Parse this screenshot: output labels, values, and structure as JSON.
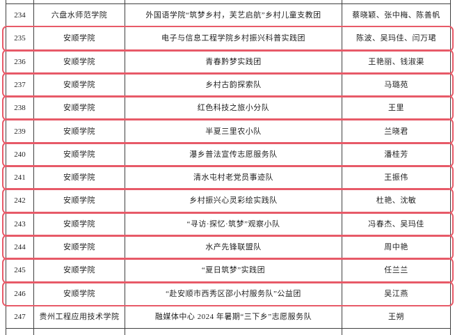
{
  "accent": {
    "highlight_border": "#e75a68",
    "grid_border": "#3f3f3f",
    "text_color": "#1f1f1f",
    "background": "#ffffff"
  },
  "table": {
    "rows": [
      {
        "no": "234",
        "school": "六盘水师范学院",
        "team": "外国语学院“筑梦乡村，芙艺启航”乡村儿童支教团",
        "members": "蔡晓颖、张中梅、陈善帆",
        "highlighted": false
      },
      {
        "no": "235",
        "school": "安顺学院",
        "team": "电子与信息工程学院乡村振兴科普实践团",
        "members": "陈波、吴玛佳、闫万珺",
        "highlighted": true
      },
      {
        "no": "236",
        "school": "安顺学院",
        "team": "青春黔梦实践团",
        "members": "王艳丽、钱淑渠",
        "highlighted": true
      },
      {
        "no": "237",
        "school": "安顺学院",
        "team": "乡村古韵探索队",
        "members": "马璐苑",
        "highlighted": true
      },
      {
        "no": "238",
        "school": "安顺学院",
        "team": "红色科技之旅小分队",
        "members": "王里",
        "highlighted": true
      },
      {
        "no": "239",
        "school": "安顺学院",
        "team": "半夏三里农小队",
        "members": "兰晓君",
        "highlighted": true
      },
      {
        "no": "240",
        "school": "安顺学院",
        "team": "瀑乡普法宣传志愿服务队",
        "members": "潘桂芳",
        "highlighted": true
      },
      {
        "no": "241",
        "school": "安顺学院",
        "team": "清水屯村老党员事迹队",
        "members": "王振伟",
        "highlighted": true
      },
      {
        "no": "242",
        "school": "安顺学院",
        "team": "乡村振兴心灵彩绘实践队",
        "members": "杜艳、沈敏",
        "highlighted": true
      },
      {
        "no": "243",
        "school": "安顺学院",
        "team": "“寻访·探忆·筑梦”观察小队",
        "members": "冯春杰、吴玛佳",
        "highlighted": true
      },
      {
        "no": "244",
        "school": "安顺学院",
        "team": "水产先锋联盟队",
        "members": "周中艳",
        "highlighted": true
      },
      {
        "no": "245",
        "school": "安顺学院",
        "team": "“夏日筑梦”实践团",
        "members": "任兰兰",
        "highlighted": true
      },
      {
        "no": "246",
        "school": "安顺学院",
        "team": "“赴安顺市西秀区邵小村服务队”公益团",
        "members": "吴江燕",
        "highlighted": true
      },
      {
        "no": "247",
        "school": "贵州工程应用技术学院",
        "team": "融媒体中心 2024 年暑期“三下乡”志愿服务队",
        "members": "王朔",
        "highlighted": false
      }
    ]
  }
}
